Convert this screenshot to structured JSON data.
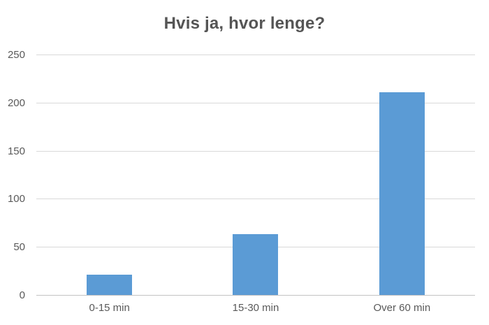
{
  "colors": {
    "bar": "#5b9bd5",
    "gridline": "#d9d9d9",
    "axis_line": "#c3c3c3",
    "text": "#595959",
    "title_text": "#555555",
    "background": "#ffffff"
  },
  "chart_data": {
    "type": "bar",
    "title": "Hvis ja, hvor lenge?",
    "categories": [
      "0-15 min",
      "15-30 min",
      "Over 60 min"
    ],
    "values": [
      21,
      63,
      211
    ],
    "xlabel": "",
    "ylabel": "",
    "ylim": [
      0,
      250
    ],
    "yticks": [
      0,
      50,
      100,
      150,
      200,
      250
    ],
    "grid": "horizontal",
    "legend_position": "none",
    "bar_color": "#5b9bd5"
  }
}
